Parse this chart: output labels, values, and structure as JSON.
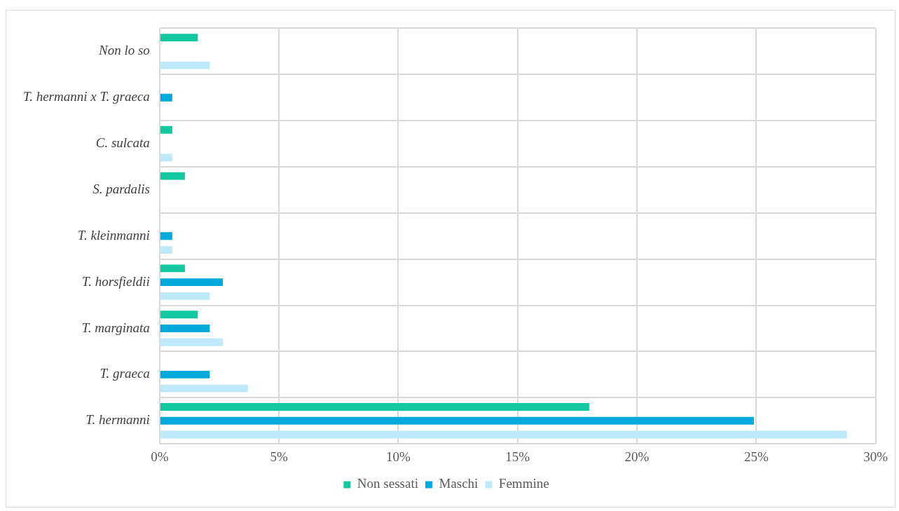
{
  "chart_data": {
    "type": "bar",
    "orientation": "horizontal",
    "categories": [
      "Non lo so",
      "T. hermanni x T. graeca",
      "C. sulcata",
      "S. pardalis",
      "T. kleinmanni",
      "T. horsfieldii",
      "T. marginata",
      "T. graeca",
      "T. hermanni"
    ],
    "series": [
      {
        "name": "Non sessati",
        "color": "#13c8a0",
        "values": [
          1.6,
          null,
          0.53,
          1.06,
          null,
          1.06,
          1.6,
          null,
          18.0
        ]
      },
      {
        "name": "Maschi",
        "color": "#03a9db",
        "values": [
          null,
          0.53,
          null,
          null,
          0.53,
          2.65,
          2.1,
          2.1,
          24.9
        ]
      },
      {
        "name": "Femmine",
        "color": "#bde9fb",
        "values": [
          2.1,
          null,
          0.53,
          null,
          0.53,
          2.1,
          2.65,
          3.7,
          28.8
        ]
      }
    ],
    "xlim": [
      0,
      30
    ],
    "xticks": [
      {
        "value": 0,
        "label": "0%"
      },
      {
        "value": 5,
        "label": "5%"
      },
      {
        "value": 10,
        "label": "10%"
      },
      {
        "value": 15,
        "label": "15%"
      },
      {
        "value": 20,
        "label": "20%"
      },
      {
        "value": 25,
        "label": "25%"
      },
      {
        "value": 30,
        "label": "30%"
      }
    ],
    "grid": true,
    "legend": "bottom"
  }
}
